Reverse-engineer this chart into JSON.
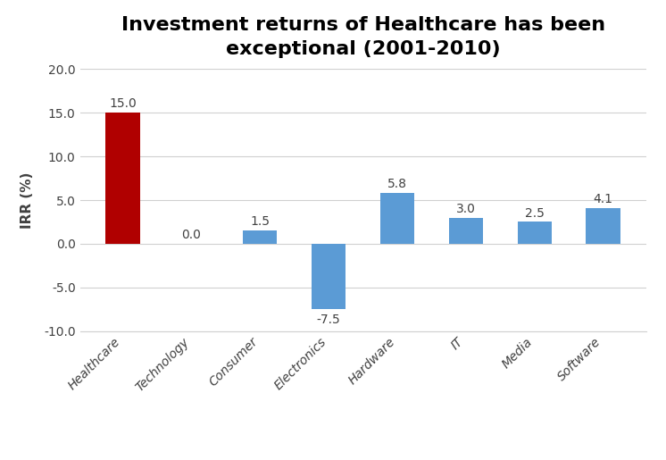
{
  "title": "Investment returns of Healthcare has been\nexceptional (2001-2010)",
  "categories": [
    "Healthcare",
    "Technology",
    "Consumer",
    "Electronics",
    "Hardware",
    "IT",
    "Media",
    "Software"
  ],
  "values": [
    15.0,
    0.0,
    1.5,
    -7.5,
    5.8,
    3.0,
    2.5,
    4.1
  ],
  "bar_colors": [
    "#b00000",
    "#5b9bd5",
    "#5b9bd5",
    "#5b9bd5",
    "#5b9bd5",
    "#5b9bd5",
    "#5b9bd5",
    "#5b9bd5"
  ],
  "ylabel": "IRR (%)",
  "ylim": [
    -10.0,
    20.0
  ],
  "yticks": [
    -10.0,
    -5.0,
    0.0,
    5.0,
    10.0,
    15.0,
    20.0
  ],
  "title_fontsize": 16,
  "label_fontsize": 11,
  "tick_fontsize": 10,
  "value_fontsize": 10,
  "background_color": "#ffffff",
  "grid_color": "#d0d0d0",
  "text_color": "#404040"
}
